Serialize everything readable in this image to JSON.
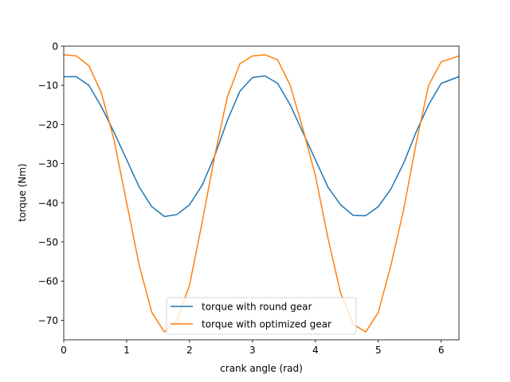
{
  "chart_data": {
    "type": "line",
    "title": "",
    "xlabel": "crank angle (rad)",
    "ylabel": "torque (Nm)",
    "xlim": [
      0,
      6.2832
    ],
    "ylim": [
      -75,
      0
    ],
    "x_ticks": [
      0,
      1,
      2,
      3,
      4,
      5,
      6
    ],
    "x_tick_labels": [
      "0",
      "1",
      "2",
      "3",
      "4",
      "5",
      "6"
    ],
    "y_ticks": [
      0,
      -10,
      -20,
      -30,
      -40,
      -50,
      -60,
      -70
    ],
    "y_tick_labels": [
      "0",
      "−10",
      "−20",
      "−30",
      "−40",
      "−50",
      "−60",
      "−70"
    ],
    "grid": false,
    "legend_position": "lower center",
    "series": [
      {
        "name": "torque with round gear",
        "color": "#1f77b4",
        "x": [
          0.0,
          0.2,
          0.4,
          0.6,
          0.8,
          1.0,
          1.2,
          1.4,
          1.6,
          1.8,
          2.0,
          2.2,
          2.4,
          2.6,
          2.8,
          3.0,
          3.2,
          3.4,
          3.6,
          3.8,
          4.0,
          4.2,
          4.4,
          4.6,
          4.8,
          5.0,
          5.2,
          5.4,
          5.6,
          5.8,
          6.0,
          6.2832
        ],
        "y": [
          -7.8,
          -7.8,
          -10.0,
          -15.5,
          -22.0,
          -29.0,
          -36.0,
          -41.0,
          -43.5,
          -43.0,
          -40.5,
          -35.5,
          -28.0,
          -19.0,
          -11.5,
          -8.0,
          -7.6,
          -9.5,
          -15.0,
          -22.0,
          -29.0,
          -36.0,
          -40.5,
          -43.2,
          -43.3,
          -41.0,
          -36.5,
          -30.0,
          -22.0,
          -15.0,
          -9.5,
          -7.8
        ]
      },
      {
        "name": "torque with optimized gear",
        "color": "#ff7f0e",
        "x": [
          0.0,
          0.2,
          0.4,
          0.6,
          0.8,
          1.0,
          1.2,
          1.4,
          1.6,
          1.8,
          2.0,
          2.2,
          2.4,
          2.6,
          2.8,
          3.0,
          3.2,
          3.4,
          3.6,
          3.8,
          4.0,
          4.2,
          4.4,
          4.6,
          4.8,
          5.0,
          5.2,
          5.4,
          5.6,
          5.8,
          6.0,
          6.2832
        ],
        "y": [
          -2.2,
          -2.5,
          -5.0,
          -12.0,
          -24.0,
          -40.0,
          -56.0,
          -68.0,
          -73.0,
          -70.0,
          -61.0,
          -45.0,
          -28.0,
          -13.0,
          -4.5,
          -2.5,
          -2.2,
          -3.5,
          -10.0,
          -21.0,
          -33.0,
          -49.0,
          -63.0,
          -71.0,
          -73.0,
          -68.0,
          -56.0,
          -42.0,
          -25.0,
          -10.0,
          -4.0,
          -2.5
        ]
      }
    ]
  }
}
